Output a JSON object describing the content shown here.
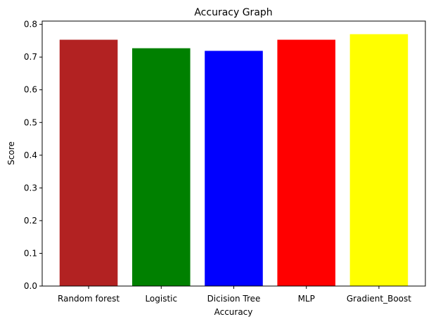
{
  "chart_data": {
    "type": "bar",
    "title": "Accuracy Graph",
    "xlabel": "Accuracy",
    "ylabel": "Score",
    "categories": [
      "Random forest",
      "Logistic",
      "Dicision Tree",
      "MLP",
      "Gradient_Boost"
    ],
    "values": [
      0.753,
      0.727,
      0.719,
      0.753,
      0.77
    ],
    "colors": [
      "#b22222",
      "#008000",
      "#0000ff",
      "#ff0000",
      "#ffff00"
    ],
    "ylim": [
      0,
      0.81
    ],
    "yticks": [
      "0.0",
      "0.1",
      "0.2",
      "0.3",
      "0.4",
      "0.5",
      "0.6",
      "0.7",
      "0.8"
    ],
    "grid": false
  }
}
